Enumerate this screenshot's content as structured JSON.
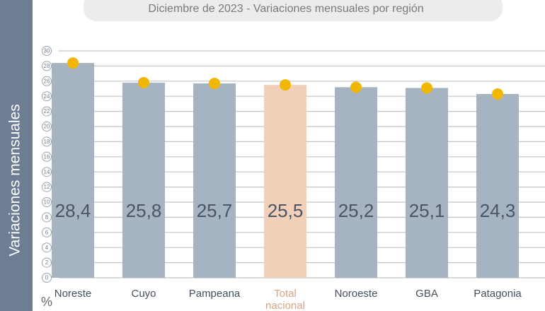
{
  "chart_data": {
    "type": "bar",
    "title": "Diciembre de 2023 - Variaciones mensuales por región",
    "y_axis_label": "Variaciones mensuales",
    "unit_label": "%",
    "categories": [
      "Noreste",
      "Cuyo",
      "Pampeana",
      "Total nacional",
      "Noroeste",
      "GBA",
      "Patagonia"
    ],
    "values": [
      28.4,
      25.8,
      25.7,
      25.5,
      25.2,
      25.1,
      24.3
    ],
    "value_labels": [
      "28,4",
      "25,8",
      "25,7",
      "25,5",
      "25,2",
      "25,1",
      "24,3"
    ],
    "colors": [
      "#a6b3c1",
      "#a6b3c1",
      "#a6b3c1",
      "#f2cfb8",
      "#a6b3c1",
      "#a6b3c1",
      "#a6b3c1"
    ],
    "marker_color": "#f2b705",
    "ylim": [
      0,
      30
    ],
    "yticks": [
      0,
      2,
      4,
      6,
      8,
      10,
      12,
      14,
      16,
      18,
      20,
      22,
      24,
      26,
      28,
      30
    ],
    "grid": true
  }
}
